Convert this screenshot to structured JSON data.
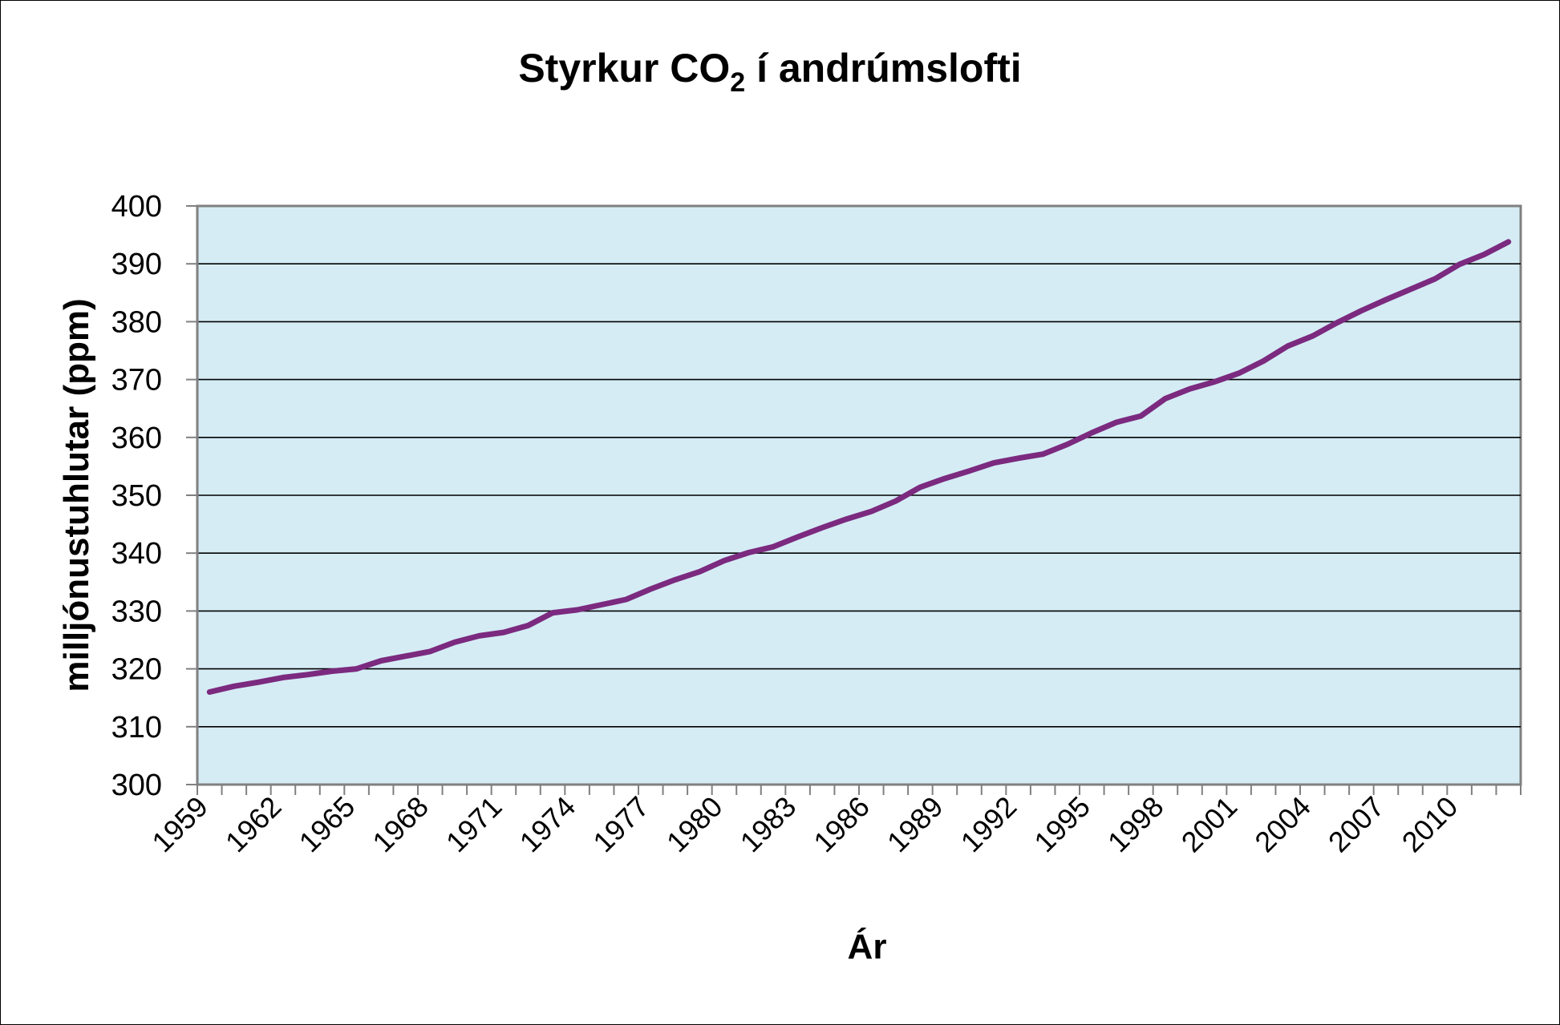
{
  "chart_data": {
    "type": "line",
    "title": "Styrkur CO",
    "title_subscript": "2",
    "title_suffix": " í andrúmslofti",
    "xlabel": "Ár",
    "ylabel": "milljónustuhlutar (ppm)",
    "ylim": [
      300,
      400
    ],
    "y_ticks": [
      300,
      310,
      320,
      330,
      340,
      350,
      360,
      370,
      380,
      390,
      400
    ],
    "x_tick_labels": [
      "1959",
      "1962",
      "1965",
      "1968",
      "1971",
      "1974",
      "1977",
      "1980",
      "1983",
      "1986",
      "1989",
      "1992",
      "1995",
      "1998",
      "2001",
      "2004",
      "2007",
      "2010"
    ],
    "grid": true,
    "legend": "none",
    "plot_background": "#d5ecf5",
    "line_color": "#7b2a7f",
    "series": [
      {
        "x": [
          1959,
          1960,
          1961,
          1962,
          1963,
          1964,
          1965,
          1966,
          1967,
          1968,
          1969,
          1970,
          1971,
          1972,
          1973,
          1974,
          1975,
          1976,
          1977,
          1978,
          1979,
          1980,
          1981,
          1982,
          1983,
          1984,
          1985,
          1986,
          1987,
          1988,
          1989,
          1990,
          1991,
          1992,
          1993,
          1994,
          1995,
          1996,
          1997,
          1998,
          1999,
          2000,
          2001,
          2002,
          2003,
          2004,
          2005,
          2006,
          2007,
          2008,
          2009,
          2010,
          2011,
          2012
        ],
        "values": [
          316.0,
          317.0,
          317.7,
          318.5,
          319.0,
          319.6,
          320.0,
          321.4,
          322.2,
          323.0,
          324.6,
          325.7,
          326.3,
          327.5,
          329.7,
          330.2,
          331.1,
          332.0,
          333.8,
          335.4,
          336.8,
          338.7,
          340.1,
          341.1,
          342.8,
          344.4,
          345.9,
          347.2,
          349.0,
          351.4,
          352.9,
          354.2,
          355.6,
          356.4,
          357.1,
          358.8,
          360.8,
          362.6,
          363.7,
          366.7,
          368.4,
          369.6,
          371.1,
          373.2,
          375.8,
          377.5,
          379.8,
          381.9,
          383.8,
          385.6,
          387.4,
          389.9,
          391.6,
          393.8
        ]
      }
    ]
  }
}
